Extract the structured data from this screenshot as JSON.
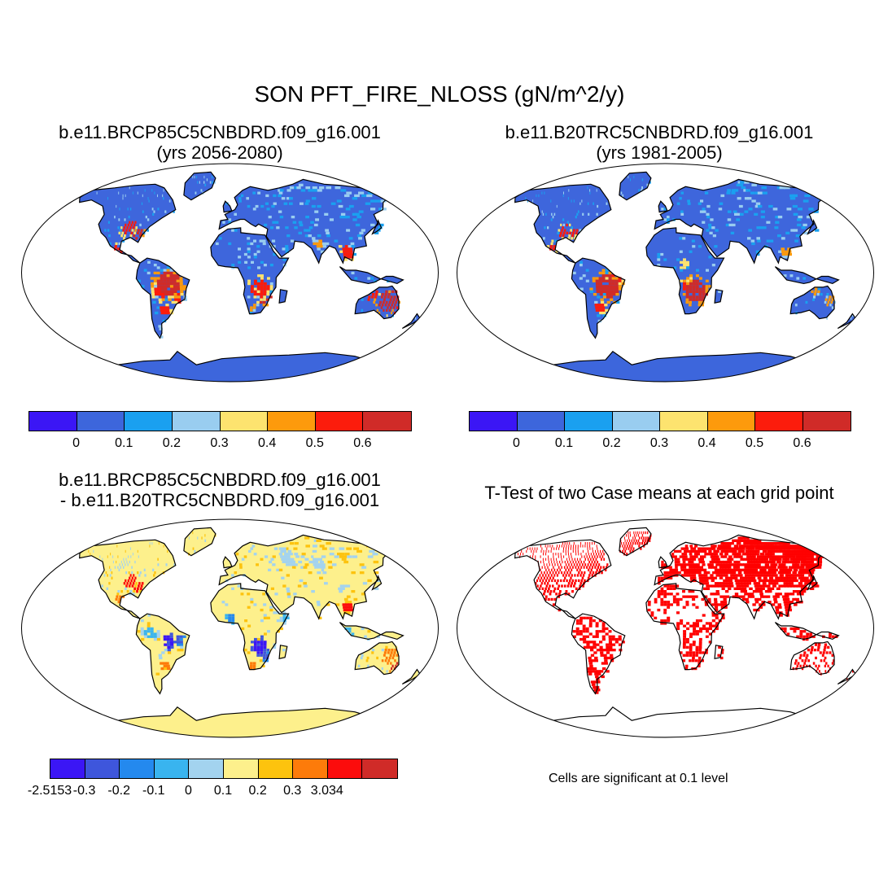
{
  "title": "SON PFT_FIRE_NLOSS (gN/m^2/y)",
  "panels": {
    "top_left": {
      "line1": "b.e11.BRCP85C5CNBDRD.f09_g16.001",
      "line2": "(yrs 2056-2080)"
    },
    "top_right": {
      "line1": "b.e11.B20TRC5CNBDRD.f09_g16.001",
      "line2": "(yrs 1981-2005)"
    },
    "bottom_left": {
      "line1": "b.e11.BRCP85C5CNBDRD.f09_g16.001",
      "line2": "- b.e11.B20TRC5CNBDRD.f09_g16.001"
    },
    "bottom_right": {
      "line1": "T-Test of two Case means at each grid point",
      "note": "Cells are significant at 0.1 level"
    }
  },
  "colorbars": {
    "abs": {
      "colors": [
        "#3b16f5",
        "#3d66dc",
        "#1aa0f0",
        "#99cdf0",
        "#fde36f",
        "#fd9a0c",
        "#fc1c0c",
        "#d02b28"
      ],
      "ticks": [
        "0",
        "0.1",
        "0.2",
        "0.3",
        "0.4",
        "0.5",
        "0.6"
      ]
    },
    "diff": {
      "colors": [
        "#3b16f5",
        "#3e56dc",
        "#2489ee",
        "#39b4ef",
        "#a3d3ef",
        "#fdf08c",
        "#fdc30e",
        "#fd7b0a",
        "#fc0c0c",
        "#d02b28"
      ],
      "ticks": [
        "-2.5153",
        "-0.3",
        "-0.2",
        "-0.1",
        "0",
        "0.1",
        "0.2",
        "0.3",
        "3.034"
      ]
    }
  },
  "legend_colors": {
    "land_low": "#3e66dc",
    "land_diff": "#fdf08c",
    "significant": "#ff0000",
    "coast": "#000000"
  }
}
